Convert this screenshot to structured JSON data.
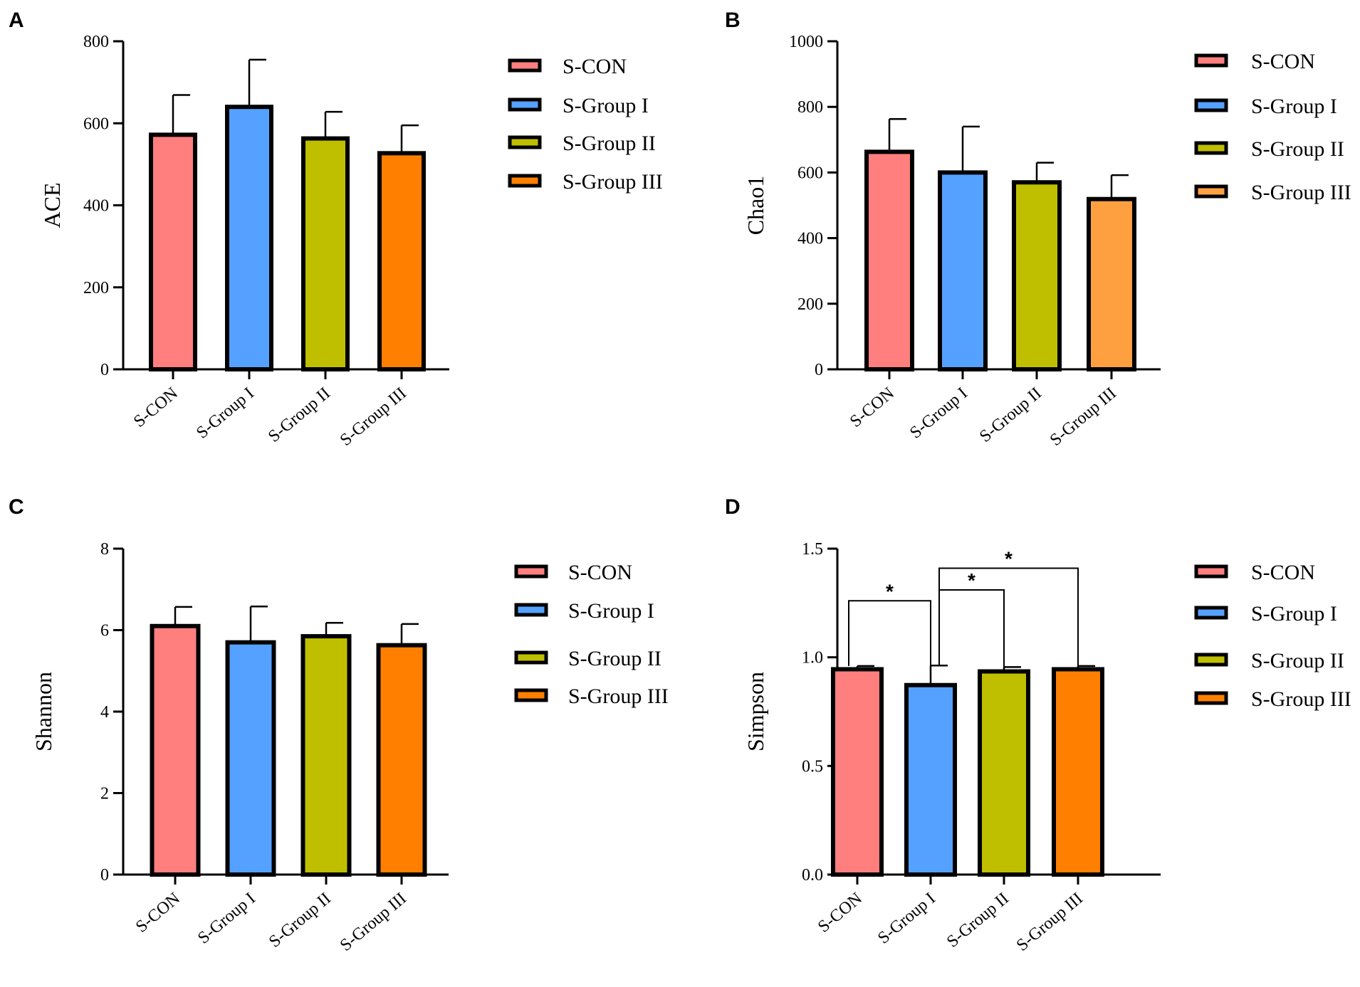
{
  "chart_data": [
    {
      "panel": "A",
      "type": "bar",
      "categories": [
        "S-CON",
        "S-Group I",
        "S-Group II",
        "S-Group III"
      ],
      "values": [
        572,
        640,
        563,
        527
      ],
      "errors": [
        97,
        115,
        65,
        68
      ],
      "colors": [
        "#FF7F7F",
        "#55A1FF",
        "#BFBF00",
        "#FF7F00"
      ],
      "ylabel": "ACE",
      "ylim": [
        0,
        800
      ],
      "yticks": [
        0,
        200,
        400,
        600,
        800
      ],
      "ytick_labels": [
        "0",
        "200",
        "400",
        "600",
        "800"
      ],
      "legend": [
        "S-CON",
        "S-Group I",
        "S-Group II",
        "S-Group III"
      ],
      "significance": []
    },
    {
      "panel": "B",
      "type": "bar",
      "categories": [
        "S-CON",
        "S-Group I",
        "S-Group II",
        "S-Group III"
      ],
      "values": [
        663,
        600,
        570,
        519
      ],
      "errors": [
        100,
        140,
        60,
        73
      ],
      "colors": [
        "#FF7F7F",
        "#55A1FF",
        "#BFBF00",
        "#FFA040"
      ],
      "ylabel": "Chao1",
      "ylim": [
        0,
        1000
      ],
      "yticks": [
        0,
        200,
        400,
        600,
        800,
        1000
      ],
      "ytick_labels": [
        "0",
        "200",
        "400",
        "600",
        "800",
        "1000"
      ],
      "legend": [
        "S-CON",
        "S-Group I",
        "S-Group II",
        "S-Group III"
      ],
      "significance": []
    },
    {
      "panel": "C",
      "type": "bar",
      "categories": [
        "S-CON",
        "S-Group I",
        "S-Group II",
        "S-Group III"
      ],
      "values": [
        6.1,
        5.7,
        5.85,
        5.63
      ],
      "errors": [
        0.47,
        0.88,
        0.33,
        0.52
      ],
      "colors": [
        "#FF7F7F",
        "#55A1FF",
        "#BFBF00",
        "#FF7F00"
      ],
      "ylabel": "Shannon",
      "ylim": [
        0,
        8
      ],
      "yticks": [
        0,
        2,
        4,
        6,
        8
      ],
      "ytick_labels": [
        "0",
        "2",
        "4",
        "6",
        "8"
      ],
      "legend": [
        "S-CON",
        "S-Group I",
        "S-Group II",
        "S-Group III"
      ],
      "significance": []
    },
    {
      "panel": "D",
      "type": "bar",
      "categories": [
        "S-CON",
        "S-Group I",
        "S-Group II",
        "S-Group III"
      ],
      "values": [
        0.945,
        0.872,
        0.935,
        0.945
      ],
      "errors": [
        0.015,
        0.09,
        0.02,
        0.015
      ],
      "colors": [
        "#FF7F7F",
        "#55A1FF",
        "#BFBF00",
        "#FF7F00"
      ],
      "ylabel": "Simpson",
      "ylim": [
        0,
        1.5
      ],
      "yticks": [
        0,
        0.5,
        1.0,
        1.5
      ],
      "ytick_labels": [
        "0.0",
        "0.5",
        "1.0",
        "1.5"
      ],
      "legend": [
        "S-CON",
        "S-Group I",
        "S-Group II",
        "S-Group III"
      ],
      "significance": [
        {
          "from": 0,
          "to": 1,
          "level": 1.26,
          "label": "*"
        },
        {
          "from": 1,
          "to": 2,
          "level": 1.31,
          "label": "*"
        },
        {
          "from": 1,
          "to": 3,
          "level": 1.41,
          "label": "*"
        }
      ]
    }
  ]
}
